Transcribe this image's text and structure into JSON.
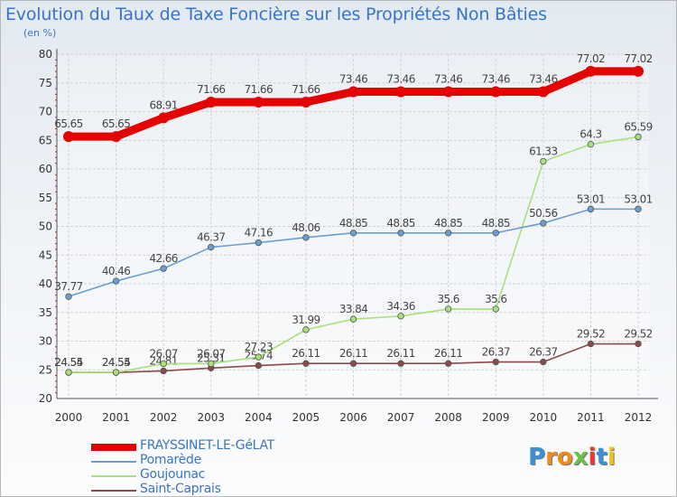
{
  "title": "Evolution du Taux de Taxe Foncière sur les Propriétés Non Bâties",
  "unit": "(en %)",
  "logo": "Proxiti",
  "chart_data": {
    "type": "line",
    "title": "Evolution du Taux de Taxe Foncière sur les Propriétés Non Bâties",
    "ylabel": "(en %)",
    "xlabel": "",
    "ylim": [
      20,
      80
    ],
    "yticks": [
      "20",
      "25",
      "30",
      "35",
      "40",
      "45",
      "50",
      "55",
      "60",
      "65",
      "70",
      "75",
      "80"
    ],
    "categories": [
      "2000",
      "2001",
      "2002",
      "2003",
      "2004",
      "2005",
      "2006",
      "2007",
      "2008",
      "2009",
      "2010",
      "2011",
      "2012"
    ],
    "series": [
      {
        "name": "FRAYSSINET-LE-GéLAT",
        "color": "#e60000",
        "values": [
          65.65,
          65.65,
          68.91,
          71.66,
          71.66,
          71.66,
          73.46,
          73.46,
          73.46,
          73.46,
          73.46,
          77.02,
          77.02
        ],
        "labels": [
          "65.65",
          "65.65",
          "68.91",
          "71.66",
          "71.66",
          "71.66",
          "73.46",
          "73.46",
          "73.46",
          "73.46",
          "73.46",
          "77.02",
          "77.02"
        ]
      },
      {
        "name": "Pomarède",
        "color": "#6a9fd0",
        "values": [
          37.77,
          40.46,
          42.66,
          46.37,
          47.16,
          48.06,
          48.85,
          48.85,
          48.85,
          48.85,
          50.56,
          53.01,
          53.01
        ],
        "labels": [
          "37.77",
          "40.46",
          "42.66",
          "46.37",
          "47.16",
          "48.06",
          "48.85",
          "48.85",
          "48.85",
          "48.85",
          "50.56",
          "53.01",
          "53.01"
        ]
      },
      {
        "name": "Goujounac",
        "color": "#a8e07a",
        "values": [
          24.55,
          24.55,
          26.07,
          26.07,
          27.23,
          31.99,
          33.84,
          34.36,
          35.6,
          35.6,
          61.33,
          64.3,
          65.59
        ],
        "labels": [
          "24.55",
          "24.55",
          "26.07",
          "26.07",
          "27.23",
          "31.99",
          "33.84",
          "34.36",
          "35.6",
          "35.6",
          "61.33",
          "64.3",
          "65.59"
        ]
      },
      {
        "name": "Saint-Caprais",
        "color": "#8a4a4a",
        "values": [
          24.54,
          24.54,
          24.81,
          25.31,
          25.74,
          26.11,
          26.11,
          26.11,
          26.11,
          26.37,
          26.37,
          29.52,
          29.52
        ],
        "labels": [
          "24.54",
          "24.54",
          "24.81",
          "25.31",
          "25.74",
          "26.11",
          "26.11",
          "26.11",
          "26.11",
          "26.37",
          "26.37",
          "29.52",
          "29.52"
        ]
      }
    ]
  }
}
